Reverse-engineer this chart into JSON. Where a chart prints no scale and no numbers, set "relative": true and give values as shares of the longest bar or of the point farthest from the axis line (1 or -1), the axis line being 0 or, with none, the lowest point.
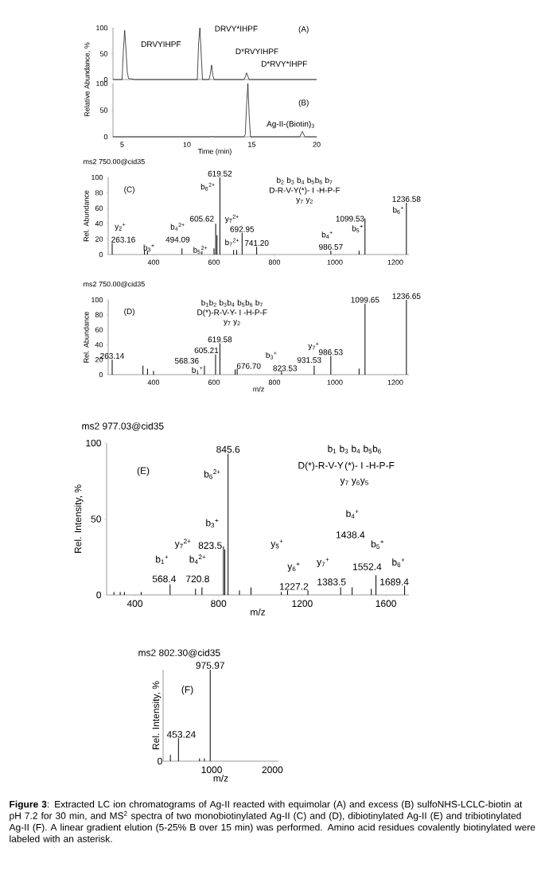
{
  "chart_data": [
    {
      "type": "line",
      "color": "#000000",
      "xlim": [
        4.3,
        20
      ],
      "ylim": [
        0,
        100
      ],
      "yticks": [
        0,
        50,
        100
      ],
      "tick_labels": "y",
      "ylabel": "Relative Abundance, %",
      "x": [
        4.3,
        5.0,
        5.1,
        5.2,
        5.3,
        5.4,
        5.5,
        6,
        10.8,
        10.9,
        11.0,
        11.1,
        11.2,
        11.7,
        11.8,
        11.9,
        12.0,
        12.1,
        14.4,
        14.5,
        14.6,
        14.7,
        14.8,
        20
      ],
      "values": [
        0,
        0,
        55,
        95,
        60,
        15,
        2,
        0,
        0,
        70,
        100,
        50,
        0,
        0,
        10,
        28,
        8,
        0,
        0,
        5,
        13,
        6,
        0,
        0
      ],
      "annotations": [
        "DRVYIHPF",
        "DRVY*IHPF",
        "D*RVYIHPF",
        "D*RVY*IHPF",
        "(A)"
      ]
    },
    {
      "type": "line",
      "color": "#000000",
      "xlim": [
        4.3,
        20
      ],
      "ylim": [
        0,
        100
      ],
      "xticks": [
        5,
        10,
        15,
        20
      ],
      "yticks": [
        0,
        50,
        100
      ],
      "xlabel": "Time (min)",
      "x": [
        4.3,
        11.8,
        11.9,
        12.0,
        14.4,
        14.5,
        14.6,
        14.7,
        14.8,
        14.9,
        18.7,
        18.9,
        19.1,
        20
      ],
      "values": [
        0,
        0,
        1,
        0,
        0,
        5,
        60,
        100,
        40,
        0,
        0,
        10,
        0,
        0
      ],
      "annotations": [
        "(B)",
        "Ag-II-(Biotin)$_{3}$"
      ]
    },
    {
      "type": "bar",
      "color": "#000000",
      "title": "ms2 750.00@cid35",
      "ylabel": "Rel. Abundance",
      "xlim": [
        250,
        1245
      ],
      "ylim": [
        0,
        100
      ],
      "xticks": [
        400,
        600,
        800,
        1000,
        1200
      ],
      "yticks": [
        0,
        20,
        40,
        60,
        80,
        100
      ],
      "x": [
        263.16,
        370,
        380,
        494.09,
        560,
        600,
        605.62,
        610,
        619.52,
        665,
        675,
        692.95,
        741.2,
        986.57,
        1080,
        1099.53,
        1236.58
      ],
      "values": [
        15,
        6,
        5,
        8,
        4,
        8,
        40,
        25,
        100,
        6,
        6,
        28,
        10,
        5,
        5,
        47,
        67
      ],
      "annotations": [
        {
          "text": "619.52",
          "x": 619.52,
          "y": 100
        },
        {
          "text": "692.95",
          "x": 692.95,
          "y": 28
        },
        {
          "text": "741.20",
          "x": 741.2,
          "y": 10
        },
        {
          "text": "986.57",
          "x": 986.57,
          "y": 5
        },
        {
          "text": "1236.58",
          "x": 1236.58,
          "y": 67
        },
        "(C)",
        "b$_{6}$$^{2+}$",
        "605.62",
        "y$_{7}$$^{2+}$",
        "263.16",
        "y$_{2}$$^{+}$",
        "b$_{3}$$^{+}$",
        "494.09",
        "b$_{4}$$^{2+}$",
        "b$_{5}$$^{2+}$",
        "b$_{7}$$^{2+}$",
        "b$_{4}$$^{+}$",
        "1099.53",
        "b$_{5}$$^{+}$",
        "b$_{6}$$^{+}$",
        "b$_{2}$ b$_{3}$ b$_{4}$ b$_{5}$b$_{6}$ b$_{7}$",
        "D-R-V-Y(*)- I -H-P-F",
        "y$_{7}$ y$_{2}$"
      ]
    },
    {
      "type": "bar",
      "color": "#000000",
      "title": "ms2 750.00@cid35",
      "ylabel": "Rel. Abundance",
      "xlabel": "m/z",
      "xlim": [
        250,
        1245
      ],
      "ylim": [
        0,
        100
      ],
      "xticks": [
        400,
        600,
        800,
        1000,
        1200
      ],
      "yticks": [
        0,
        20,
        40,
        60,
        80,
        100
      ],
      "x": [
        263.14,
        365,
        380,
        400,
        568.36,
        605.21,
        619.58,
        670,
        676.7,
        823.53,
        931.53,
        986.53,
        1080,
        1099.65,
        1236.65
      ],
      "values": [
        20,
        12,
        8,
        5,
        12,
        27,
        42,
        7,
        8,
        5,
        12,
        25,
        8,
        95,
        100
      ],
      "annotations": [
        {
          "text": "263.14",
          "x": 263.14,
          "y": 20
        },
        {
          "text": "619.58",
          "x": 619.58,
          "y": 42
        },
        {
          "text": "986.53",
          "x": 986.53,
          "y": 25
        },
        {
          "text": "1099.65",
          "x": 1099.65,
          "y": 95
        },
        {
          "text": "1236.65",
          "x": 1236.65,
          "y": 100
        },
        "(D)",
        "568.36",
        "b$_{1}$$^{+}$",
        "605.21",
        "676.70",
        "b$_{3}$$^{+}$",
        "823.53",
        "y$_{7}$$^{+}$",
        "931.53",
        "b$_{1}$b$_{2}$ b$_{3}$b$_{4}$ b$_{5}$b$_{6}$ b$_{7}$",
        "D(*)-R-V-Y- I -H-P-F",
        "y$_{7}$ y$_{2}$"
      ]
    },
    {
      "type": "bar",
      "color": "#000000",
      "title": "ms2 977.03@cid35",
      "ylabel": "Rel. Intensity, %",
      "xlabel": "m/z",
      "xlim": [
        265,
        1710
      ],
      "ylim": [
        0,
        100
      ],
      "xticks": [
        400,
        800,
        1200,
        1600
      ],
      "yticks": [
        0,
        50,
        100
      ],
      "x": [
        300,
        330,
        350,
        430,
        568.4,
        690,
        720.8,
        823.5,
        830,
        845.6,
        900,
        955,
        1100,
        1130,
        1227.2,
        1383.5,
        1438.4,
        1530,
        1552.4,
        1689.4
      ],
      "values": [
        2,
        2,
        2,
        2,
        7,
        4,
        5,
        32,
        30,
        93,
        3,
        5,
        2,
        3,
        3,
        5,
        5,
        4,
        13,
        6
      ],
      "annotations": [
        {
          "text": "845.6",
          "x": 845.6,
          "y": 93
        },
        "(E)",
        "b$_{6}$$^{2+}$",
        "b$_{3}$$^{+}$",
        "823.5",
        "y$_{7}$$^{2+}$",
        "b$_{1}$$^{+}$",
        "568.4",
        "b$_{4}$$^{2+}$",
        "720.8",
        "y$_{5}$$^{+}$",
        "y$_{6}$$^{+}$",
        "1227.2",
        "y$_{7}$$^{+}$",
        "1383.5",
        "b$_{4}$$^{+}$",
        "1438.4",
        "b$_{5}$$^{+}$",
        "1552.4",
        "b$_{6}$$^{+}$",
        "1689.4",
        "b$_{1}$ b$_{3}$ b$_{4}$ b$_{5}$b$_{6}$",
        "D(*)-R-V-Y",
        "(*)- I -H-P-F",
        "y$_{7}$ y$_{6}$y$_{5}$"
      ]
    },
    {
      "type": "bar",
      "color": "#000000",
      "relative": true,
      "title": "ms2 802.30@cid35",
      "ylabel": "Rel. Intensity, %",
      "xlabel": "m/z",
      "xlim": [
        200,
        2100
      ],
      "xticks": [
        1000,
        2000
      ],
      "x": [
        320,
        453.24,
        800,
        880,
        975.97
      ],
      "values": [
        0.07,
        0.25,
        0.03,
        0.03,
        1
      ],
      "annotations": [
        {
          "text": "975.97",
          "x": 975.97,
          "y": 1
        },
        "(F)",
        "453.24",
        "0"
      ]
    },
    {
      "type": "other",
      "annotations": [
        "**Figure 3**: Extracted LC ion chromatograms of Ag-II reacted with equimolar (A) and excess (B) sulfoNHS-LCLC-biotin at pH 7.2 for 30 min, and MS$^{2}$ spectra of two monobiotinylated Ag-II (C) and (D), dibiotinylated Ag-II (E) and tribiotinylated Ag-II (F). A linear gradient elution (5-25% B over 15 min) was performed. Amino acid residues covalently biotinylated were labeled with an asterisk."
      ]
    }
  ]
}
